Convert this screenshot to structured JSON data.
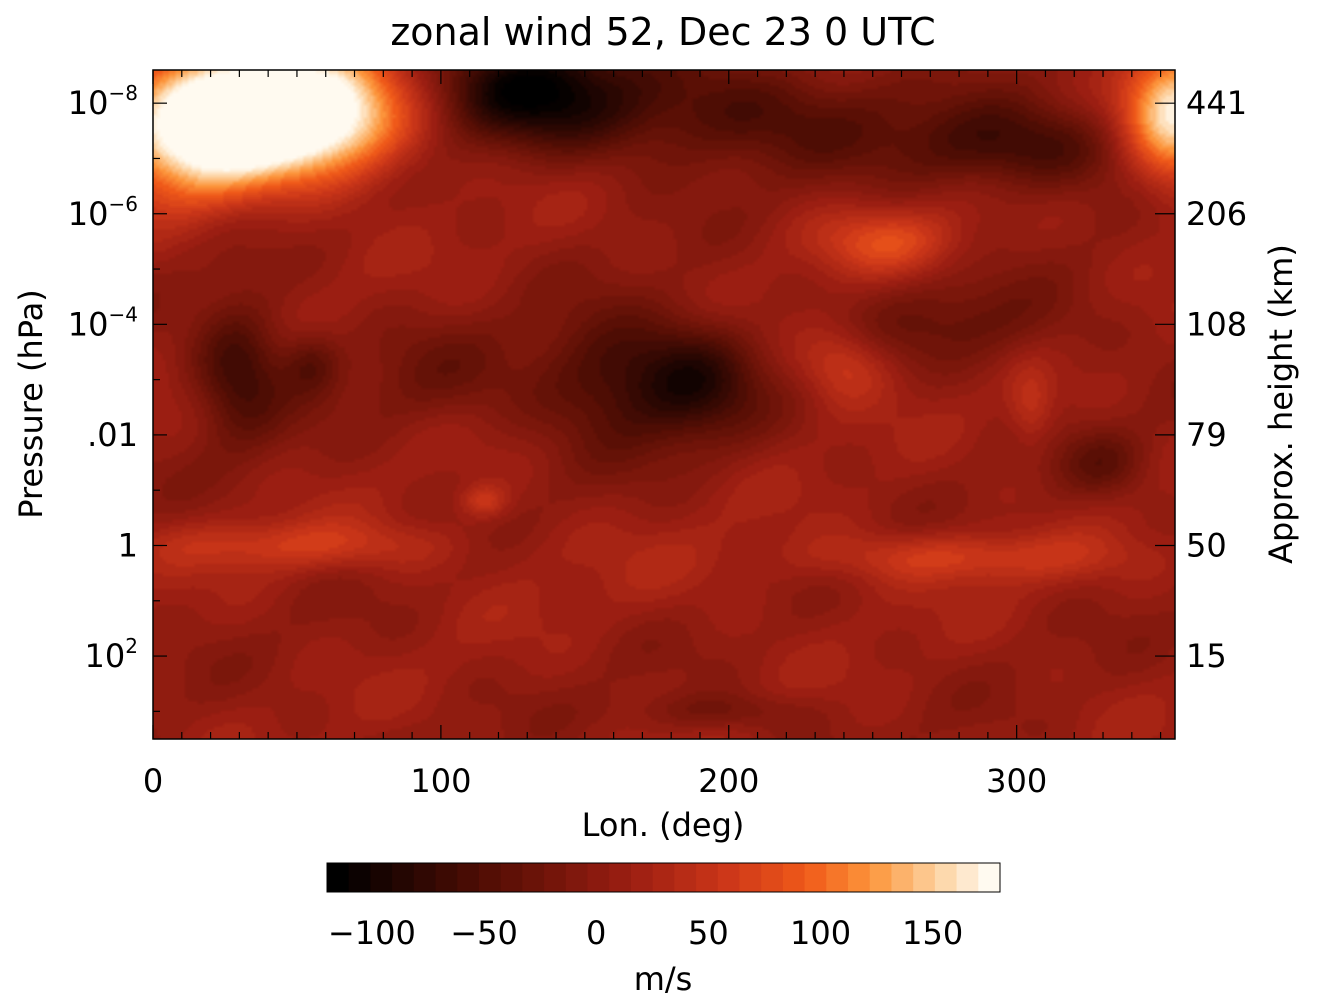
{
  "chart_data": {
    "type": "heatmap",
    "title": "zonal wind 52, Dec 23   0 UTC",
    "xlabel": "Lon. (deg)",
    "ylabel": "Pressure (hPa)",
    "y2label": "Approx. height (km)",
    "xlim": [
      0,
      355
    ],
    "x_ticks": [
      0,
      100,
      200,
      300
    ],
    "x_tick_labels": [
      "0",
      "100",
      "200",
      "300"
    ],
    "y_scale": "log-pressure",
    "y_log10_range": [
      -8.6,
      3.5
    ],
    "y_ticks_log10": [
      -8,
      -6,
      -4,
      -2,
      0,
      2
    ],
    "y_tick_labels": [
      "10^-8",
      "10^-6",
      "10^-4",
      ".01",
      "1",
      "10^2"
    ],
    "y2_ticks_log10": [
      -8,
      -6,
      -4,
      -2,
      0,
      2
    ],
    "y2_tick_labels": [
      "441",
      "206",
      "108",
      "79",
      "50",
      "15"
    ],
    "colorbar": {
      "label": "m/s",
      "range": [
        -120,
        180
      ],
      "ticks": [
        -100,
        -50,
        0,
        50,
        100,
        150
      ],
      "tick_labels": [
        "−100",
        "−50",
        "0",
        "50",
        "100",
        "150"
      ]
    },
    "features": [
      {
        "lon": 40,
        "log10p": -8.1,
        "value": 180,
        "spread_lon": 40,
        "spread_p": 1.1
      },
      {
        "lon": 15,
        "log10p": -7.3,
        "value": 140,
        "spread_lon": 30,
        "spread_p": 1.2
      },
      {
        "lon": 60,
        "log10p": -7.5,
        "value": 100,
        "spread_lon": 30,
        "spread_p": 1.0
      },
      {
        "lon": 355,
        "log10p": -7.8,
        "value": 160,
        "spread_lon": 18,
        "spread_p": 1.3
      },
      {
        "lon": 130,
        "log10p": -8.3,
        "value": -110,
        "spread_lon": 35,
        "spread_p": 1.0
      },
      {
        "lon": 200,
        "log10p": -7.8,
        "value": -70,
        "spread_lon": 60,
        "spread_p": 1.0
      },
      {
        "lon": 300,
        "log10p": -7.2,
        "value": -80,
        "spread_lon": 40,
        "spread_p": 0.8
      },
      {
        "lon": 255,
        "log10p": -5.5,
        "value": 60,
        "spread_lon": 25,
        "spread_p": 0.6
      },
      {
        "lon": 240,
        "log10p": -3.3,
        "value": 55,
        "spread_lon": 16,
        "spread_p": 0.7
      },
      {
        "lon": 30,
        "log10p": -3.2,
        "value": -80,
        "spread_lon": 16,
        "spread_p": 1.3
      },
      {
        "lon": 55,
        "log10p": -3.3,
        "value": -50,
        "spread_lon": 10,
        "spread_p": 0.6
      },
      {
        "lon": 160,
        "log10p": -3.0,
        "value": -80,
        "spread_lon": 28,
        "spread_p": 1.2
      },
      {
        "lon": 190,
        "log10p": -3.0,
        "value": -75,
        "spread_lon": 22,
        "spread_p": 1.1
      },
      {
        "lon": 100,
        "log10p": -3.0,
        "value": -30,
        "spread_lon": 30,
        "spread_p": 1.0
      },
      {
        "lon": 285,
        "log10p": -4.0,
        "value": -40,
        "spread_lon": 40,
        "spread_p": 0.8
      },
      {
        "lon": 305,
        "log10p": -2.5,
        "value": 40,
        "spread_lon": 8,
        "spread_p": 0.7
      },
      {
        "lon": 115,
        "log10p": -0.8,
        "value": 50,
        "spread_lon": 8,
        "spread_p": 0.3
      },
      {
        "lon": 50,
        "log10p": 0.0,
        "value": 50,
        "spread_lon": 50,
        "spread_p": 0.45
      },
      {
        "lon": 280,
        "log10p": 0.2,
        "value": 55,
        "spread_lon": 50,
        "spread_p": 0.45
      },
      {
        "lon": 180,
        "log10p": 0.5,
        "value": 10,
        "spread_lon": 80,
        "spread_p": 1.0
      },
      {
        "lon": 195,
        "log10p": 3.0,
        "value": -35,
        "spread_lon": 30,
        "spread_p": 0.35
      },
      {
        "lon": 330,
        "log10p": -1.5,
        "value": -40,
        "spread_lon": 15,
        "spread_p": 0.6
      }
    ]
  }
}
